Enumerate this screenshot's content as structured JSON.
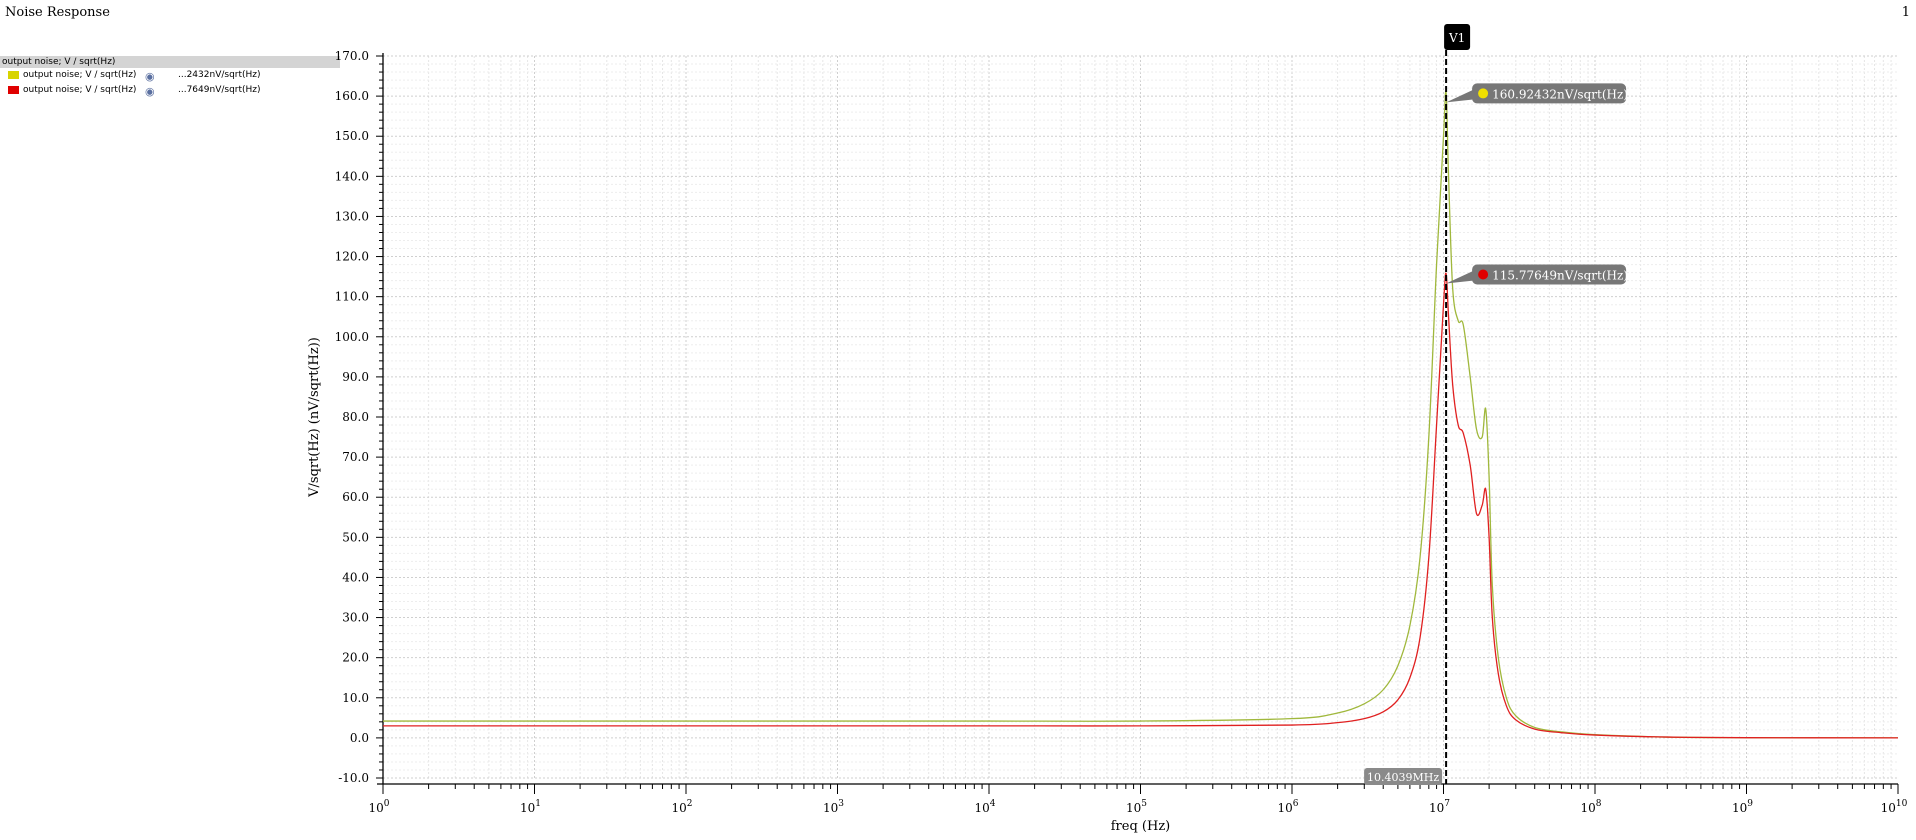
{
  "window": {
    "title": "Noise Response",
    "page_number": "1"
  },
  "legend": {
    "header": "output noise; V / sqrt(Hz)",
    "entries": [
      {
        "name": "output noise; V / sqrt(Hz)",
        "value": "...2432nV/sqrt(Hz)",
        "color": "#d8d400",
        "icon": "eye-icon"
      },
      {
        "name": "output noise; V / sqrt(Hz)",
        "value": "...7649nV/sqrt(Hz)",
        "color": "#e00000",
        "icon": "eye-icon"
      }
    ]
  },
  "marker": {
    "label": "V1",
    "x_readout": "10.4039MHz",
    "x_value": 10403900,
    "readouts": [
      {
        "text": "160.92432nV/sqrt(Hz)",
        "value": 160.92432,
        "dot_color": "#f0e000"
      },
      {
        "text": "115.77649nV/sqrt(Hz)",
        "value": 115.77649,
        "dot_color": "#e00000"
      }
    ]
  },
  "chart_data": {
    "type": "line",
    "title": "Noise Response",
    "xlabel": "freq (Hz)",
    "ylabel": "V/sqrt(Hz) (nV/sqrt(Hz))",
    "xscale": "log",
    "xlim": [
      1,
      10000000000
    ],
    "ylim": [
      -10,
      170
    ],
    "x_tick_labels": [
      "10^0",
      "10^1",
      "10^2",
      "10^3",
      "10^4",
      "10^5",
      "10^6",
      "10^7",
      "10^8",
      "10^9",
      "10^10"
    ],
    "y_tick_labels": [
      "-10.0",
      "0.0",
      "10.0",
      "20.0",
      "30.0",
      "40.0",
      "50.0",
      "60.0",
      "70.0",
      "80.0",
      "90.0",
      "100.0",
      "110.0",
      "120.0",
      "130.0",
      "140.0",
      "150.0",
      "160.0",
      "170.0"
    ],
    "grid": true,
    "series": [
      {
        "name": "output noise; V / sqrt(Hz)",
        "color": "#a0b83c",
        "x": [
          1,
          10,
          100,
          1000,
          10000,
          100000,
          1000000,
          2000000,
          3000000,
          4000000,
          5000000,
          6000000,
          7000000,
          8000000,
          9000000,
          10000000,
          10400000,
          10800000,
          11500000,
          12500000,
          13500000,
          15000000,
          16500000,
          18000000,
          19000000,
          20000000,
          21000000,
          23000000,
          26000000,
          30000000,
          40000000,
          60000000,
          100000000,
          300000000,
          1000000000,
          10000000000
        ],
        "y": [
          4.2,
          4.2,
          4.2,
          4.2,
          4.2,
          4.2,
          4.8,
          6.2,
          8.5,
          12,
          18,
          28,
          45,
          75,
          118,
          150,
          160.9,
          140,
          112,
          104,
          103,
          90,
          77,
          75,
          82,
          65,
          38,
          20,
          10,
          5.5,
          2.6,
          1.5,
          0.8,
          0.2,
          0.05,
          0
        ]
      },
      {
        "name": "output noise; V / sqrt(Hz)",
        "color": "#e02020",
        "x": [
          1,
          10,
          100,
          1000,
          10000,
          100000,
          1000000,
          2000000,
          3000000,
          4000000,
          5000000,
          6000000,
          7000000,
          8000000,
          9000000,
          10000000,
          10400000,
          10800000,
          11500000,
          12500000,
          13500000,
          15000000,
          16500000,
          18000000,
          19000000,
          20000000,
          21000000,
          23000000,
          26000000,
          30000000,
          40000000,
          60000000,
          100000000,
          300000000,
          1000000000,
          10000000000
        ],
        "y": [
          3.0,
          3.0,
          3.0,
          3.0,
          3.0,
          3.0,
          3.2,
          3.8,
          4.8,
          6.5,
          9.5,
          15,
          25,
          45,
          78,
          108,
          115.8,
          105,
          88,
          78,
          76,
          68,
          56,
          58,
          62,
          50,
          30,
          16,
          8,
          4.5,
          2.2,
          1.3,
          0.7,
          0.2,
          0.05,
          0
        ]
      }
    ]
  }
}
